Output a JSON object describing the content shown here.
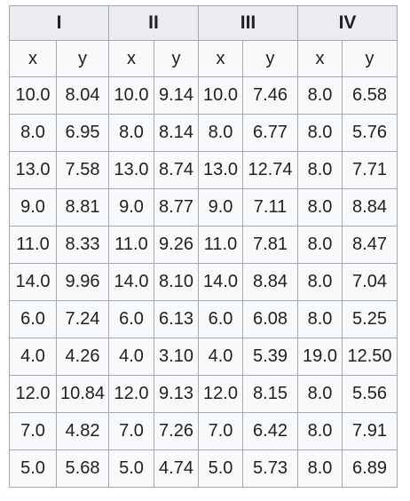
{
  "groups": [
    {
      "label": "I"
    },
    {
      "label": "II"
    },
    {
      "label": "III"
    },
    {
      "label": "IV"
    }
  ],
  "subheaders": {
    "x": "x",
    "y": "y"
  },
  "rows": [
    [
      "10.0",
      "8.04",
      "10.0",
      "9.14",
      "10.0",
      "7.46",
      "8.0",
      "6.58"
    ],
    [
      "8.0",
      "6.95",
      "8.0",
      "8.14",
      "8.0",
      "6.77",
      "8.0",
      "5.76"
    ],
    [
      "13.0",
      "7.58",
      "13.0",
      "8.74",
      "13.0",
      "12.74",
      "8.0",
      "7.71"
    ],
    [
      "9.0",
      "8.81",
      "9.0",
      "8.77",
      "9.0",
      "7.11",
      "8.0",
      "8.84"
    ],
    [
      "11.0",
      "8.33",
      "11.0",
      "9.26",
      "11.0",
      "7.81",
      "8.0",
      "8.47"
    ],
    [
      "14.0",
      "9.96",
      "14.0",
      "8.10",
      "14.0",
      "8.84",
      "8.0",
      "7.04"
    ],
    [
      "6.0",
      "7.24",
      "6.0",
      "6.13",
      "6.0",
      "6.08",
      "8.0",
      "5.25"
    ],
    [
      "4.0",
      "4.26",
      "4.0",
      "3.10",
      "4.0",
      "5.39",
      "19.0",
      "12.50"
    ],
    [
      "12.0",
      "10.84",
      "12.0",
      "9.13",
      "12.0",
      "8.15",
      "8.0",
      "5.56"
    ],
    [
      "7.0",
      "4.82",
      "7.0",
      "7.26",
      "7.0",
      "6.42",
      "8.0",
      "7.91"
    ],
    [
      "5.0",
      "5.68",
      "5.0",
      "4.74",
      "5.0",
      "5.73",
      "8.0",
      "6.89"
    ]
  ],
  "colors": {
    "header_bg": "#eaecf0",
    "cell_bg": "#f8f9fa",
    "border": "#a2a9b1",
    "text": "#202122"
  }
}
